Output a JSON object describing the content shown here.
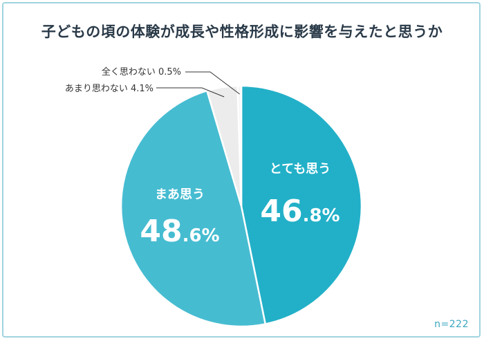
{
  "title": "子どもの頃の体験が成長や性格形成に影響を与えたと思うか",
  "sample_size": "n=222",
  "colors": {
    "very_much": "#22b0c8",
    "somewhat": "#46bcd1",
    "not_really": "#ececec",
    "not_at_all": "#f6f6f6",
    "title_highlight": "#f6d27a"
  },
  "chart_data": {
    "type": "pie",
    "title": "子どもの頃の体験が成長や性格形成に影響を与えたと思うか",
    "slices": [
      {
        "label": "とても思う",
        "value": 46.8,
        "pct_int": "46",
        "pct_dec": ".8%"
      },
      {
        "label": "まあ思う",
        "value": 48.6,
        "pct_int": "48",
        "pct_dec": ".6%"
      },
      {
        "label": "あまり思わない",
        "value": 4.1,
        "text": "あまり思わない 4.1%"
      },
      {
        "label": "全く思わない",
        "value": 0.5,
        "text": "全く思わない 0.5%"
      }
    ]
  }
}
